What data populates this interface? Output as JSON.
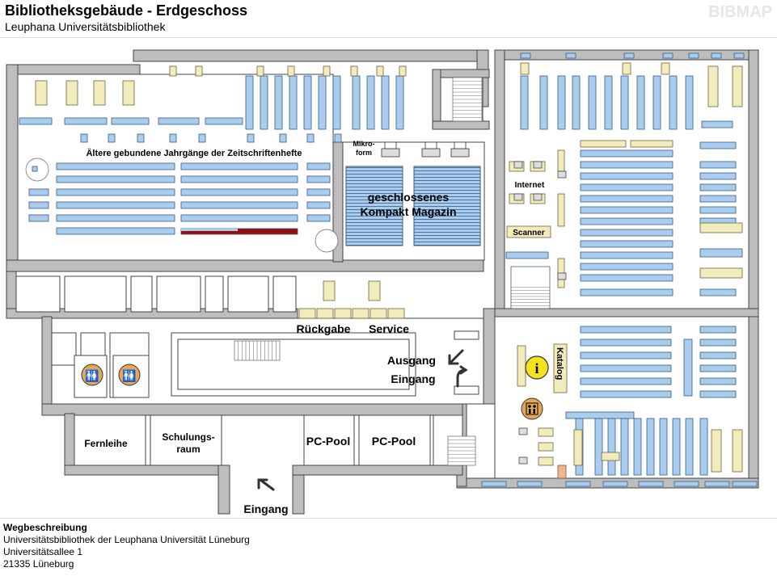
{
  "header": {
    "title": "Bibliotheksgebäude - Erdgeschoss",
    "subtitle": "Leuphana Universitätsbibliothek",
    "brand": "BIBMAP"
  },
  "map": {
    "labels": {
      "zeitschriften": "Ältere gebundene Jahrgänge der Zeitschriftenhefte",
      "mikroform_1": "Mikro-",
      "mikroform_2": "form",
      "magazin_1": "geschlossenes",
      "magazin_2": "Kompakt Magazin",
      "internet": "Internet",
      "scanner": "Scanner",
      "rueckgabe": "Rückgabe",
      "service": "Service",
      "ausgang": "Ausgang",
      "eingang_right": "Eingang",
      "katalog": "Katalog",
      "fernleihe": "Fernleihe",
      "schulungsraum_1": "Schulungs-",
      "schulungsraum_2": "raum",
      "pcpool_1": "PC-Pool",
      "pcpool_2": "PC-Pool",
      "eingang_bottom": "Eingang"
    },
    "colors": {
      "shelf": "#a9cdef",
      "shelf_border": "#3c5a82",
      "desk": "#f2ebbc",
      "wall": "#bdbdbd",
      "wall_border": "#444444",
      "highlight": "#9a0b0b",
      "info": "#f6e21a",
      "orange": "#f2b48a"
    },
    "icons": [
      "info-icon",
      "restroom-icon",
      "elevator-icon",
      "printer-icon",
      "computer-icon",
      "spiral-stair-icon",
      "arrow-icon"
    ]
  },
  "footer": {
    "title": "Wegbeschreibung",
    "line1": "Universitätsbibliothek  der  Leuphana  Universität  Lüneburg",
    "line2": "Universitätsallee 1",
    "line3": "21335 Lüneburg"
  }
}
